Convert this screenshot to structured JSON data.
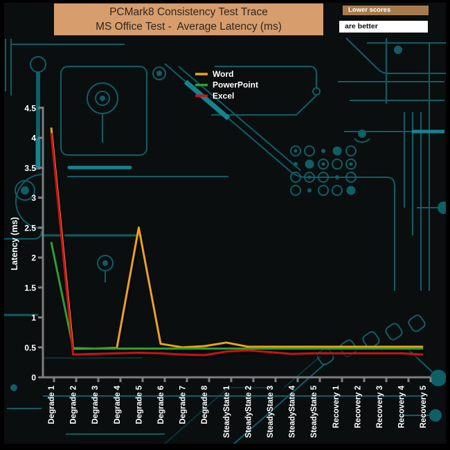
{
  "header": {
    "title_line1": "PCMark8 Consistency Test Trace",
    "title_line2": "MS Office Test -  Average Latency (ms)",
    "note_line1": "Lower scores",
    "note_line2": "are better"
  },
  "colors": {
    "title_bg": "#d79d6d",
    "note_badge_bg": "#a87b4e",
    "board_bg": "#0a0e0f",
    "board_trace": "#0f5f66",
    "board_trace_bright": "#17838f",
    "axis": "#7e7e7e",
    "label_text": "#ffffff",
    "word": "#efa11c",
    "powerpoint": "#2aa12e",
    "excel": "#cd1212"
  },
  "chart_data": {
    "type": "line",
    "title": "PCMark8 Consistency Test Trace — MS Office Test - Average Latency (ms)",
    "xlabel": "",
    "ylabel": "Latency (ms)",
    "ylim": [
      0,
      4.5
    ],
    "ytick_step": 0.5,
    "grid": false,
    "legend_position": "top-center-inside",
    "categories": [
      "Degrade 1",
      "Degrade 2",
      "Degrade 3",
      "Degrade 4",
      "Degrade 5",
      "Degrade 6",
      "Degrade 7",
      "Degrade 8",
      "SteadyState 1",
      "SteadyState 2",
      "SteadyState 3",
      "SteadyState 4",
      "SteadyState 5",
      "Recovery 1",
      "Recovery 2",
      "Recovery 3",
      "Recovery 4",
      "Recovery 5"
    ],
    "series": [
      {
        "name": "Word",
        "color": "#efa11c",
        "values": [
          4.17,
          0.48,
          0.48,
          0.49,
          2.5,
          0.56,
          0.5,
          0.52,
          0.58,
          0.51,
          0.51,
          0.51,
          0.51,
          0.51,
          0.51,
          0.51,
          0.51,
          0.51
        ]
      },
      {
        "name": "PowerPoint",
        "color": "#2aa12e",
        "values": [
          2.26,
          0.49,
          0.48,
          0.48,
          0.48,
          0.48,
          0.48,
          0.48,
          0.48,
          0.48,
          0.48,
          0.48,
          0.48,
          0.48,
          0.48,
          0.48,
          0.48,
          0.48
        ]
      },
      {
        "name": "Excel",
        "color": "#cd1212",
        "values": [
          4.08,
          0.38,
          0.39,
          0.4,
          0.41,
          0.4,
          0.38,
          0.37,
          0.43,
          0.45,
          0.42,
          0.39,
          0.4,
          0.4,
          0.4,
          0.4,
          0.4,
          0.38
        ]
      }
    ]
  }
}
